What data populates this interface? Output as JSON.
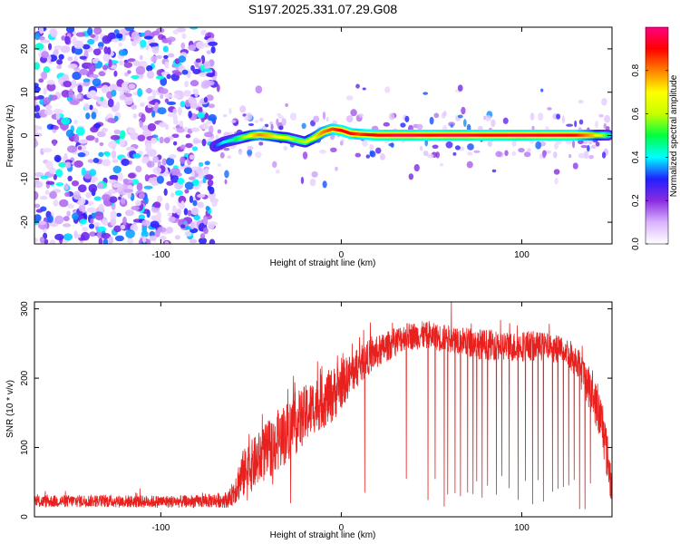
{
  "title": "S197.2025.331.07.29.G08",
  "chart_data": [
    {
      "type": "heatmap",
      "name": "spectrogram",
      "xlabel": "Height of straight line (km)",
      "ylabel": "Frequency (Hz)",
      "xlim": [
        -170,
        150
      ],
      "ylim": [
        -25,
        25
      ],
      "xticks": [
        -100,
        0,
        100
      ],
      "xtick_labels": [
        "-100",
        "0",
        "100"
      ],
      "yticks": [
        -20,
        -10,
        0,
        10,
        20
      ],
      "ytick_labels": [
        "-20",
        "-10",
        "0",
        "10",
        "20"
      ],
      "colorbar": {
        "label": "Normalized spectral amplitude",
        "range": [
          0,
          1
        ],
        "ticks": [
          0.0,
          0.2,
          0.4,
          0.6,
          0.8
        ],
        "tick_labels": [
          "0.0",
          "0.2",
          "0.4",
          "0.6",
          "0.8"
        ],
        "colormap": [
          "#ffffff",
          "#d9b3ff",
          "#8a2be2",
          "#2020ff",
          "#00ffff",
          "#00ff40",
          "#c8ff00",
          "#ffff00",
          "#ff8000",
          "#ff0000",
          "#ff0080"
        ]
      },
      "noise_region_x": [
        -170,
        -70
      ],
      "signal_track": {
        "x": [
          -70,
          -65,
          -60,
          -55,
          -50,
          -45,
          -40,
          -35,
          -30,
          -25,
          -20,
          -15,
          -10,
          -5,
          0,
          5,
          10,
          15,
          20,
          30,
          40,
          50,
          60,
          70,
          80,
          90,
          100,
          110,
          120,
          130,
          140,
          148
        ],
        "frequency_hz": [
          -2.5,
          -1.5,
          -1.0,
          -0.5,
          0.0,
          0.2,
          0.0,
          -0.3,
          -0.5,
          -1.0,
          -1.5,
          -0.5,
          0.8,
          1.5,
          1.2,
          0.5,
          0.3,
          0.2,
          0.1,
          0.1,
          0.1,
          0.1,
          0.1,
          0.1,
          0.1,
          0.1,
          0.1,
          0.1,
          0.1,
          0.1,
          0.1,
          0.1
        ],
        "amplitude": [
          0.3,
          0.4,
          0.45,
          0.55,
          0.7,
          0.8,
          0.75,
          0.7,
          0.65,
          0.55,
          0.6,
          0.7,
          0.8,
          0.85,
          0.9,
          0.9,
          0.85,
          0.9,
          0.9,
          0.95,
          0.95,
          0.9,
          0.95,
          0.95,
          0.9,
          0.92,
          0.95,
          0.92,
          0.93,
          0.9,
          0.75,
          0.5
        ]
      }
    },
    {
      "type": "line",
      "name": "snr",
      "xlabel": "Height of straight line (km)",
      "ylabel": "SNR (10 * v/v)",
      "xlim": [
        -170,
        150
      ],
      "ylim": [
        0,
        310
      ],
      "xticks": [
        -100,
        0,
        100
      ],
      "xtick_labels": [
        "-100",
        "0",
        "100"
      ],
      "yticks": [
        0,
        100,
        200,
        300
      ],
      "ytick_labels": [
        "0",
        "100",
        "200",
        "300"
      ],
      "color": "#e8201e",
      "envelope": {
        "x": [
          -170,
          -140,
          -110,
          -80,
          -62,
          -55,
          -45,
          -35,
          -25,
          -15,
          -5,
          5,
          15,
          25,
          35,
          45,
          55,
          65,
          75,
          85,
          95,
          105,
          115,
          125,
          130,
          135,
          140,
          145,
          150
        ],
        "mean": [
          22,
          23,
          22,
          22,
          25,
          60,
          85,
          110,
          135,
          160,
          175,
          205,
          230,
          245,
          260,
          262,
          258,
          255,
          250,
          248,
          245,
          247,
          245,
          240,
          225,
          200,
          170,
          130,
          40
        ],
        "spread": [
          9,
          9,
          9,
          9,
          12,
          35,
          40,
          45,
          45,
          40,
          40,
          30,
          25,
          22,
          20,
          20,
          20,
          20,
          22,
          22,
          22,
          22,
          20,
          20,
          25,
          30,
          30,
          40,
          30
        ]
      },
      "dropouts_x": [
        -52,
        -38,
        -28,
        13,
        36,
        48,
        52,
        57,
        59,
        63,
        66,
        70,
        73,
        75,
        78,
        81,
        86,
        89,
        93,
        98,
        102,
        106,
        109,
        112,
        117,
        120,
        123,
        126,
        129,
        132,
        135,
        138
      ],
      "peak": {
        "x": 61,
        "value": 312
      }
    }
  ]
}
